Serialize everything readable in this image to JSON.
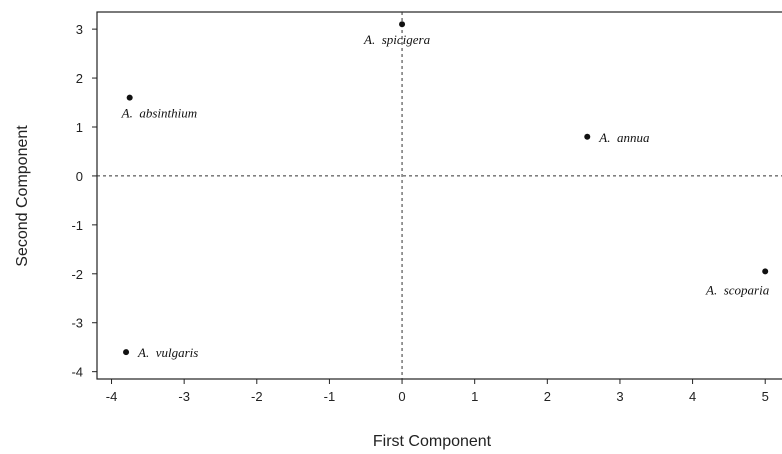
{
  "chart_data": {
    "type": "scatter",
    "title": "",
    "xlabel": "First Component",
    "ylabel": "Second Component",
    "xlim": [
      -4.2,
      5.3
    ],
    "ylim": [
      -4.15,
      3.35
    ],
    "xticks": [
      -4,
      -3,
      -2,
      -1,
      0,
      1,
      2,
      3,
      4,
      5
    ],
    "yticks": [
      3,
      2,
      1,
      0,
      -1,
      -2,
      -3,
      -4
    ],
    "reference_lines": {
      "x": 0,
      "y": 0,
      "style": "dashed"
    },
    "grid": false,
    "points": [
      {
        "label": "A.  spicigera",
        "x": 0.0,
        "y": 3.1,
        "label_anchor": "below"
      },
      {
        "label": "A.  absinthium",
        "x": -3.75,
        "y": 1.6,
        "label_anchor": "below"
      },
      {
        "label": "A.  annua",
        "x": 2.55,
        "y": 0.8,
        "label_anchor": "right"
      },
      {
        "label": "A.  scoparia",
        "x": 5.0,
        "y": -1.95,
        "label_anchor": "below-left"
      },
      {
        "label": "A.  vulgaris",
        "x": -3.8,
        "y": -3.6,
        "label_anchor": "right"
      }
    ]
  }
}
